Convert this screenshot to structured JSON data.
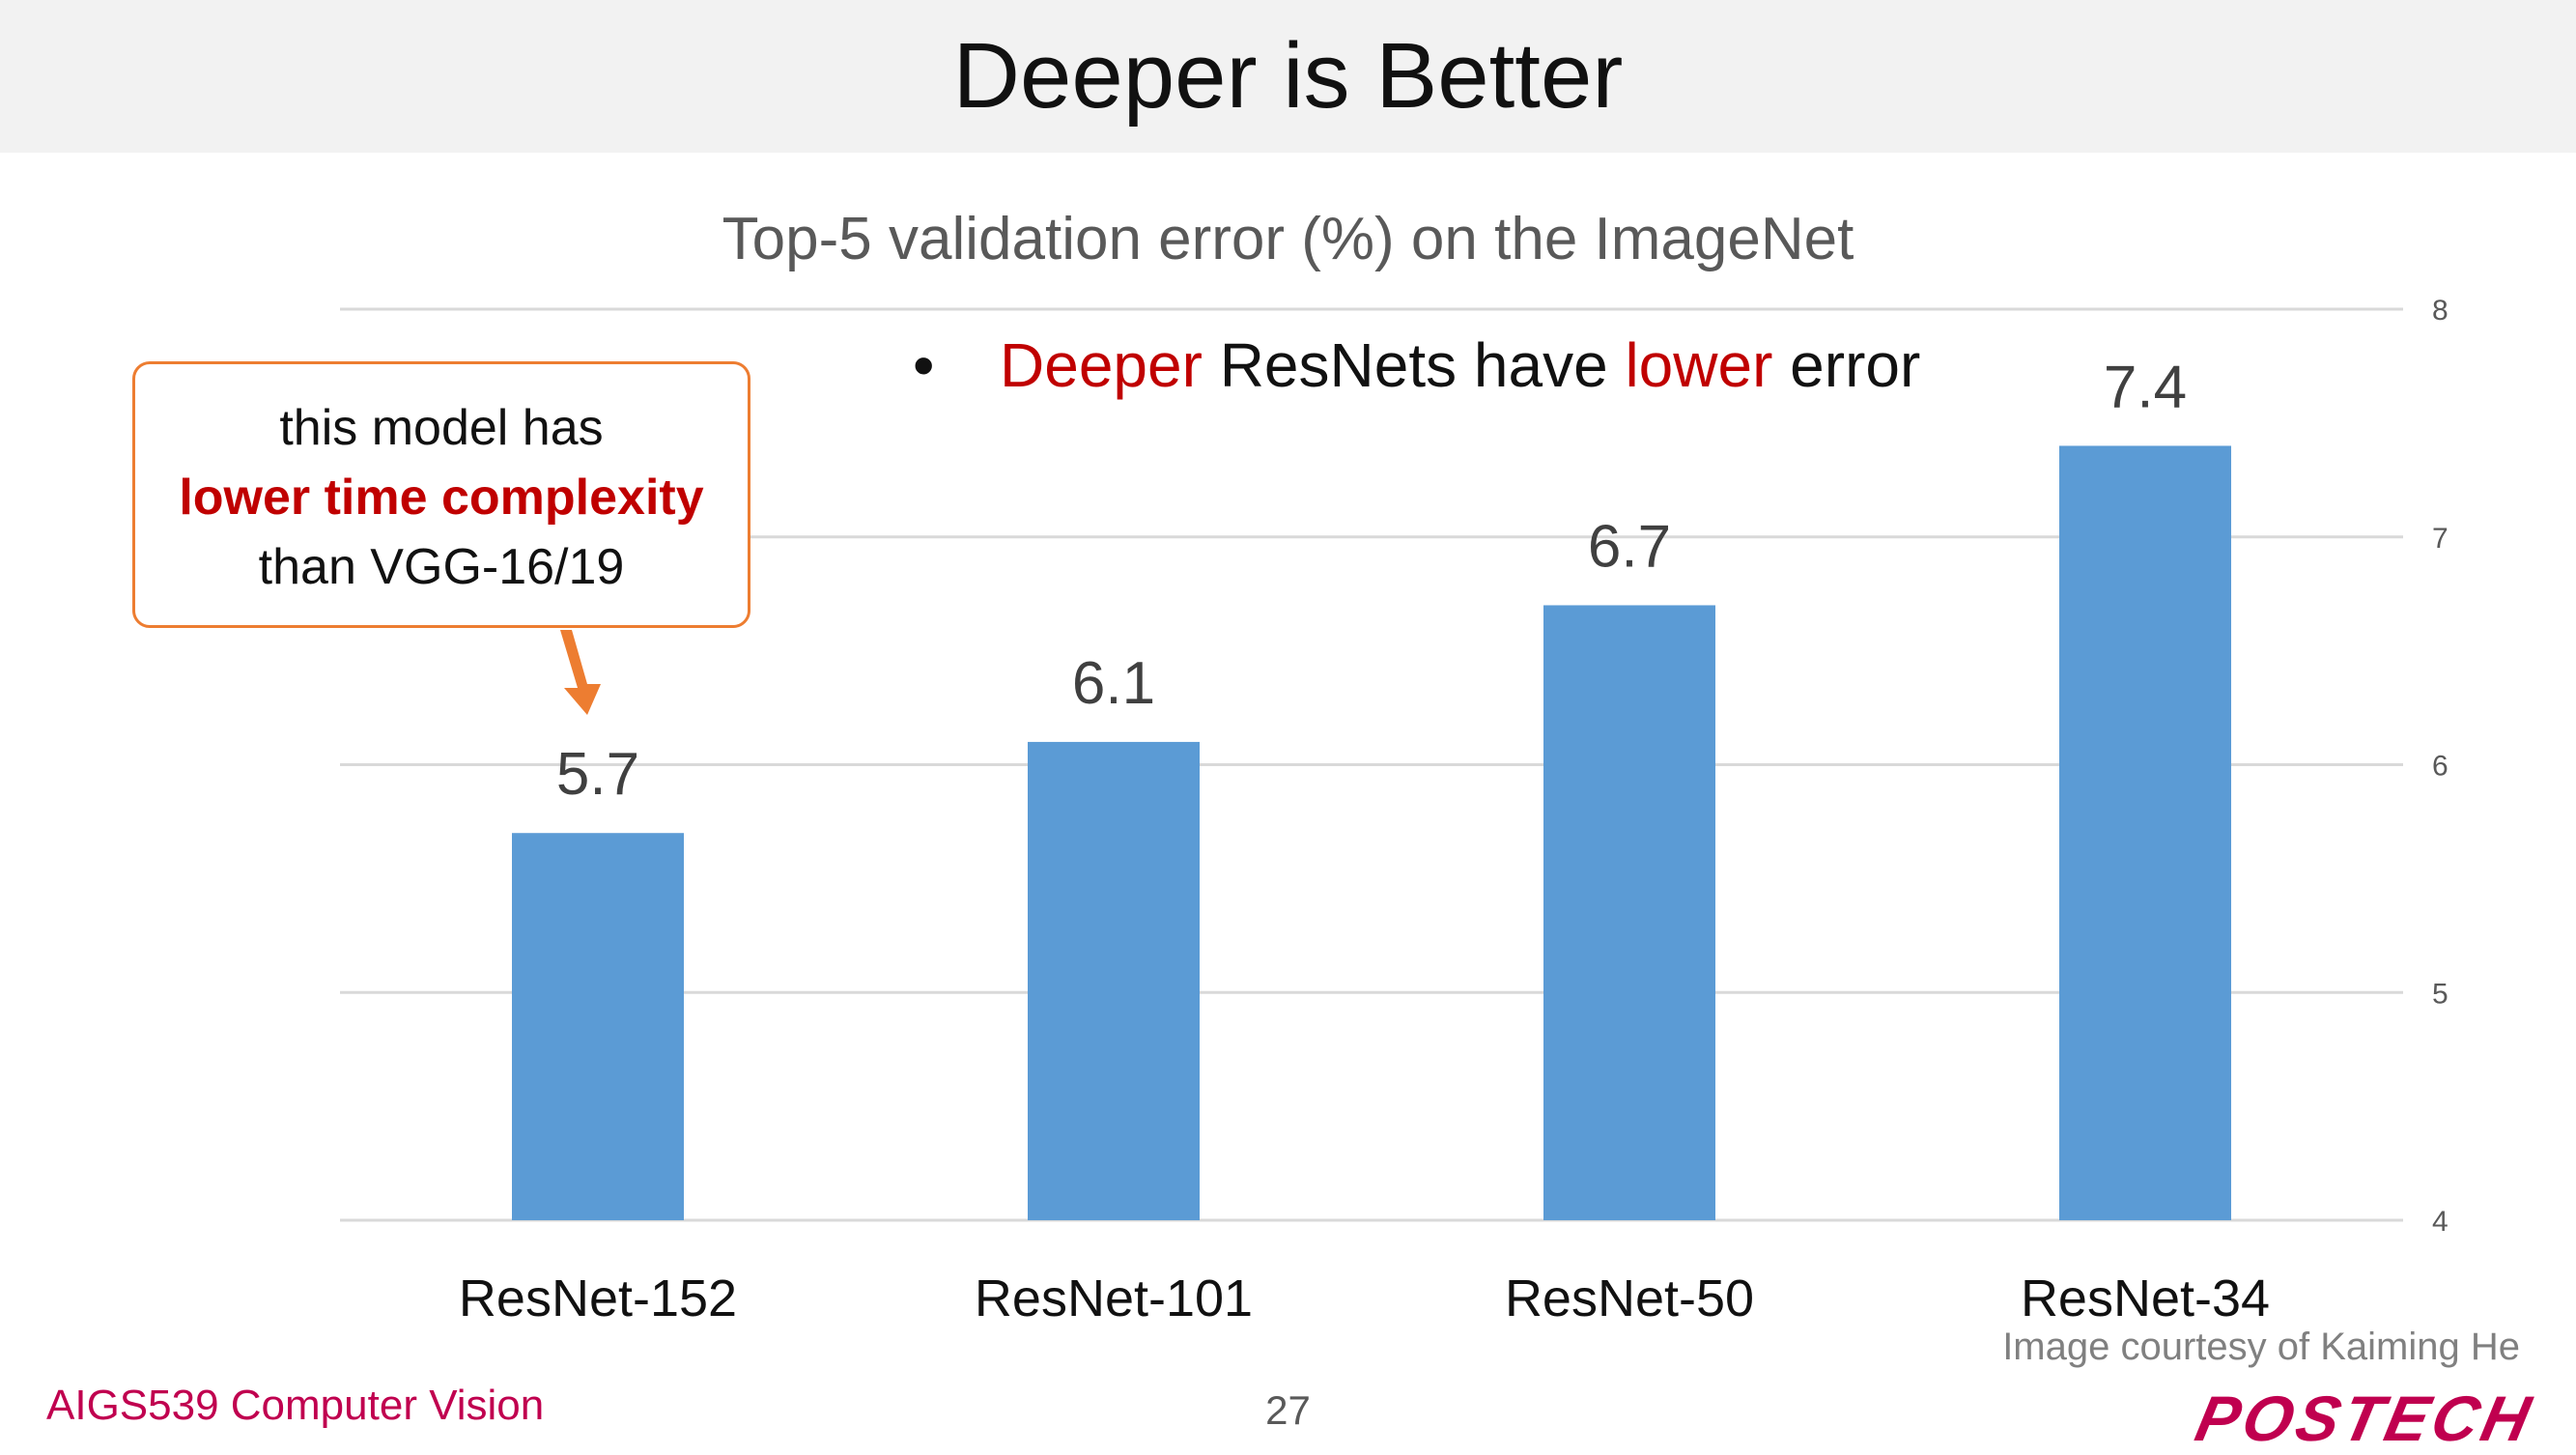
{
  "slide": {
    "title": "Deeper is Better",
    "bullet_prefix": "•",
    "bullet_part1": "Deeper",
    "bullet_part2": " ResNets have ",
    "bullet_part3": "lower",
    "bullet_part4": " error",
    "callout_line1": "this model has",
    "callout_line2": "lower time complexity",
    "callout_line3": "than VGG-16/19",
    "credit": "Image courtesy of Kaiming He",
    "course": "AIGS539 Computer Vision",
    "page_number": "27",
    "logo_text": "POSTECH"
  },
  "chart_data": {
    "type": "bar",
    "title": "Top-5 validation error (%) on the ImageNet",
    "categories": [
      "ResNet-152",
      "ResNet-101",
      "ResNet-50",
      "ResNet-34"
    ],
    "values": [
      5.7,
      6.1,
      6.7,
      7.4
    ],
    "data_labels": [
      "5.7",
      "6.1",
      "6.7",
      "7.4"
    ],
    "ylim": [
      4,
      8
    ],
    "yticks": [
      4,
      5,
      6,
      7,
      8
    ],
    "y_axis_side": "right",
    "grid": true,
    "xlabel": "",
    "ylabel": "",
    "bar_color": "#5b9bd5"
  },
  "colors": {
    "accent_red": "#c00000",
    "callout_border": "#ed7d31",
    "arrow": "#ed7d31",
    "brand": "#c0004f"
  }
}
